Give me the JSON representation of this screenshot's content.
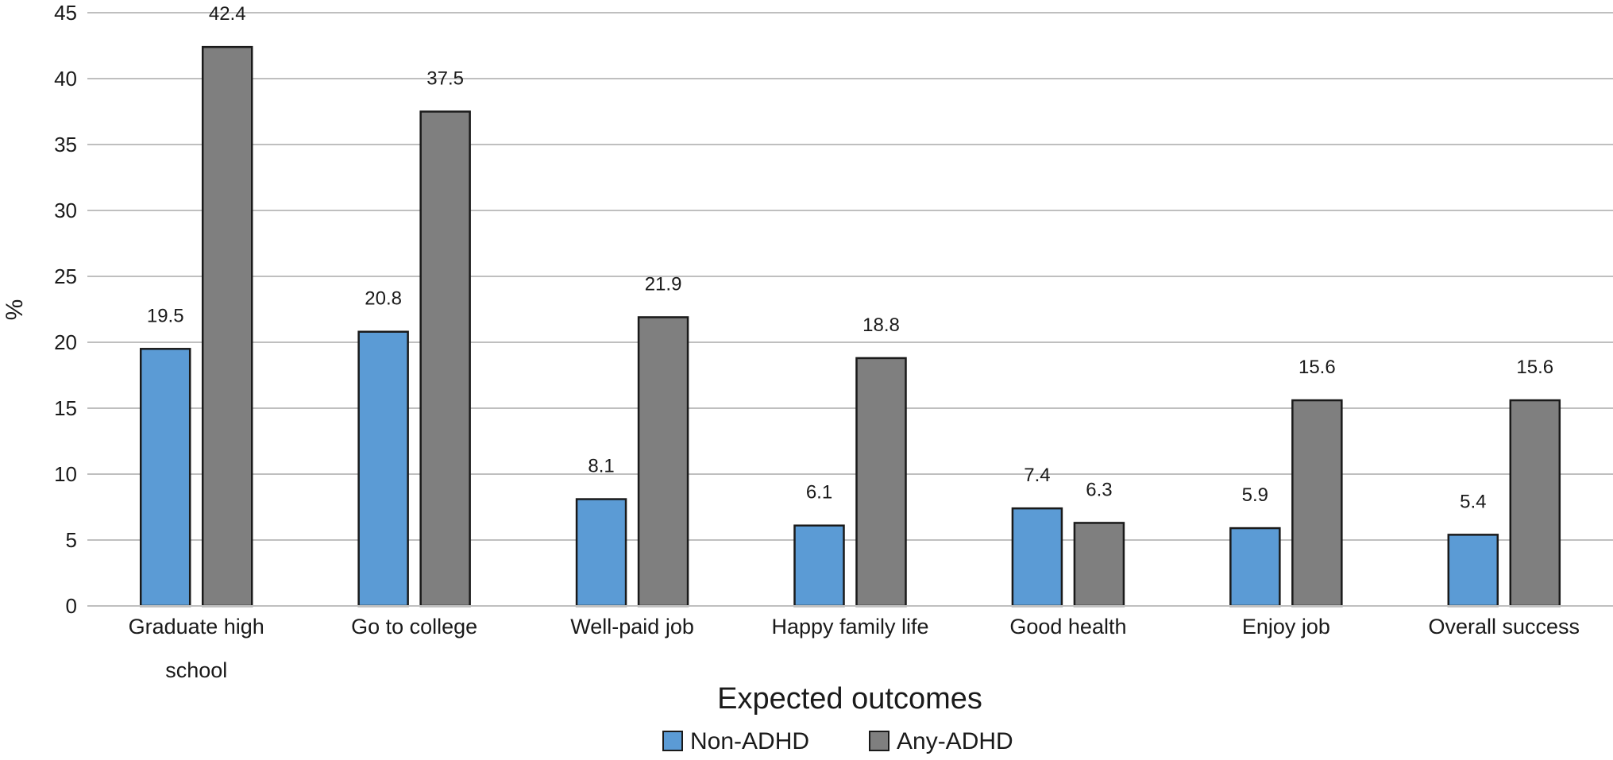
{
  "chart_data": {
    "type": "bar",
    "title": "",
    "xlabel": "Expected outcomes",
    "ylabel": "%",
    "ylim": [
      0,
      45
    ],
    "ytick_step": 5,
    "yticks": [
      "0",
      "5",
      "10",
      "15",
      "20",
      "25",
      "30",
      "35",
      "40",
      "45"
    ],
    "grid": true,
    "legend_position": "bottom-center",
    "categories": [
      [
        "Graduate high",
        "school"
      ],
      [
        "Go to college"
      ],
      [
        "Well-paid job"
      ],
      [
        "Happy family life"
      ],
      [
        "Good health"
      ],
      [
        "Enjoy job"
      ],
      [
        "Overall success"
      ]
    ],
    "series": [
      {
        "name": "Non-ADHD",
        "color": "#5b9bd5",
        "values": [
          19.5,
          20.8,
          8.1,
          6.1,
          7.4,
          5.9,
          5.4
        ],
        "labels": [
          "19.5",
          "20.8",
          "8.1",
          "6.1",
          "7.4",
          "5.9",
          "5.4"
        ]
      },
      {
        "name": "Any-ADHD",
        "color": "#7f7f7f",
        "values": [
          42.4,
          37.5,
          21.9,
          18.8,
          6.3,
          15.6,
          15.6
        ],
        "labels": [
          "42.4",
          "37.5",
          "21.9",
          "18.8",
          "6.3",
          "15.6",
          "15.6"
        ]
      }
    ]
  }
}
